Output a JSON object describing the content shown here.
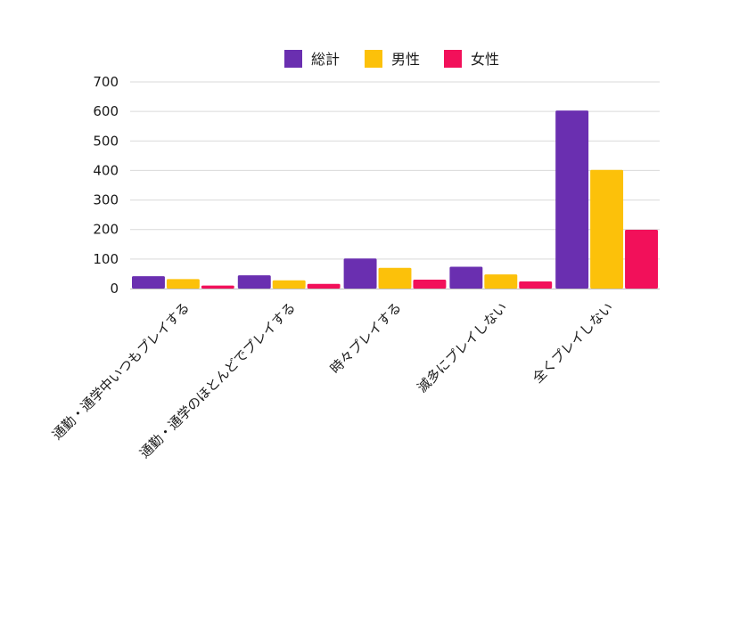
{
  "chart_data": {
    "type": "bar",
    "categories": [
      "通勤・通学中いつもプレイする",
      "通勤・通学のほとんどでプレイする",
      "時々プレイする",
      "滅多にプレイしない",
      "全くプレイしない"
    ],
    "series": [
      {
        "name": "総計",
        "color": "#6a2fb0",
        "values": [
          42,
          45,
          102,
          74,
          603
        ]
      },
      {
        "name": "男性",
        "color": "#fcc10a",
        "values": [
          32,
          28,
          70,
          48,
          402
        ]
      },
      {
        "name": "女性",
        "color": "#f2105a",
        "values": [
          10,
          16,
          30,
          24,
          199
        ]
      }
    ],
    "ylim": [
      0,
      700
    ],
    "yticks": [
      "0",
      "100",
      "200",
      "300",
      "400",
      "500",
      "600",
      "700"
    ],
    "grid": true,
    "legend_position": "top-center"
  }
}
